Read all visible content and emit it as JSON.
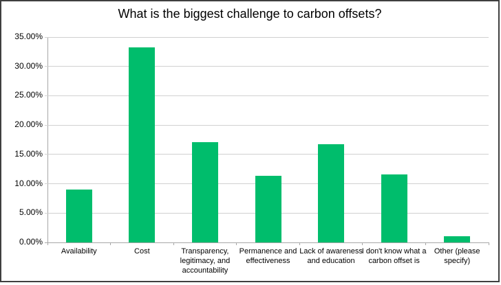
{
  "chart_data": {
    "type": "bar",
    "title": "What is the biggest challenge to carbon offsets?",
    "categories": [
      "Availability",
      "Cost",
      "Transparency, legitimacy, and accountability",
      "Permanence and effectiveness",
      "Lack of awareness and education",
      "I don't know what a carbon offset is",
      "Other (please specify)"
    ],
    "values": [
      9.0,
      33.2,
      17.1,
      11.3,
      16.7,
      11.6,
      1.0
    ],
    "unit": "%",
    "xlabel": "",
    "ylabel": "",
    "ylim": [
      0,
      35
    ],
    "y_tick_step": 5,
    "y_tick_labels": [
      "0.00%",
      "5.00%",
      "10.00%",
      "15.00%",
      "20.00%",
      "25.00%",
      "30.00%",
      "35.00%"
    ],
    "grid": true,
    "legend": false,
    "colors": {
      "bar": "#00bd6c",
      "gridline": "#d0d0d0",
      "axis": "#a6a6a6",
      "frame_border": "#3f3f3f",
      "text": "#000000",
      "background": "#ffffff"
    }
  }
}
